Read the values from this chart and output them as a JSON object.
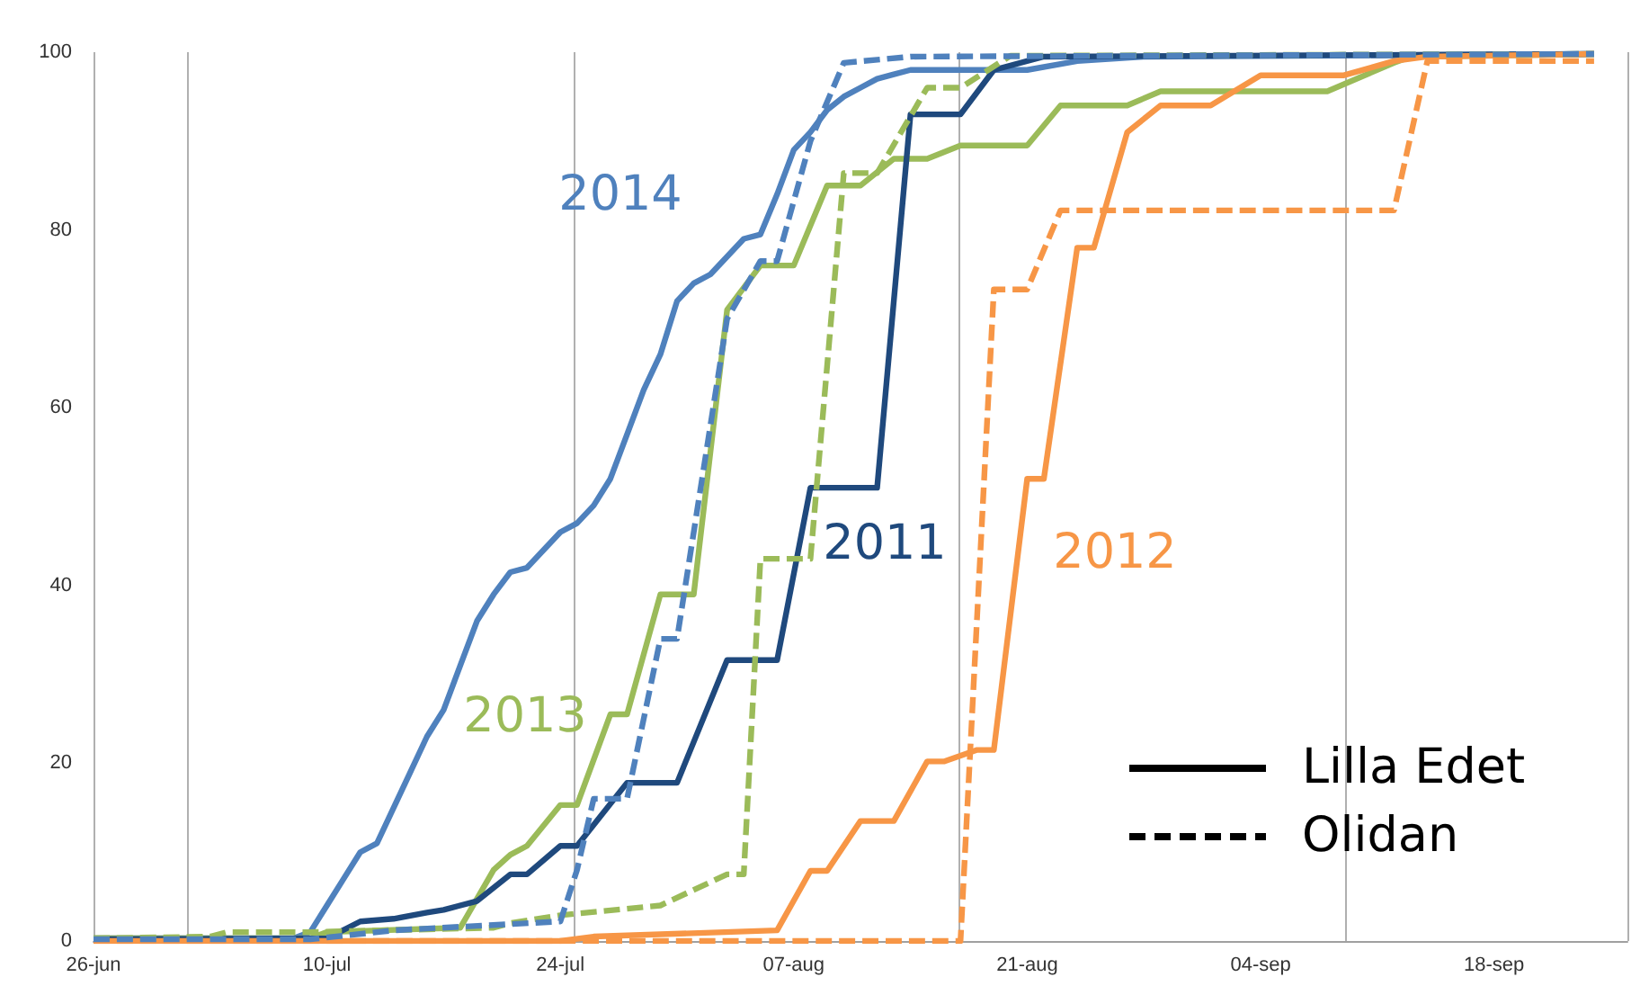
{
  "chart_data": {
    "type": "line",
    "xlim": [
      "--06-26",
      "--09-26"
    ],
    "xticks": [
      {
        "value": "--06-26",
        "label": "26-jun"
      },
      {
        "value": "--07-10",
        "label": "10-jul"
      },
      {
        "value": "--07-24",
        "label": "24-jul"
      },
      {
        "value": "--08-07",
        "label": "07-aug"
      },
      {
        "value": "--08-21",
        "label": "21-aug"
      },
      {
        "value": "--09-04",
        "label": "04-sep"
      },
      {
        "value": "--09-18",
        "label": "18-sep"
      }
    ],
    "ylim": [
      0,
      100
    ],
    "yticks": [
      0,
      20,
      40,
      60,
      80,
      100
    ],
    "grid": "x",
    "marker": "none",
    "series": [
      {
        "name": "2014",
        "line_style": "solid",
        "color": "#4f81bd",
        "x": [
          "--06-26",
          "--07-08",
          "--07-09",
          "--07-10",
          "--07-11",
          "--07-12",
          "--07-13",
          "--07-14",
          "--07-15",
          "--07-16",
          "--07-17",
          "--07-18",
          "--07-19",
          "--07-20",
          "--07-21",
          "--07-22",
          "--07-23",
          "--07-24",
          "--07-25",
          "--07-26",
          "--07-27",
          "--07-28",
          "--07-29",
          "--07-30",
          "--07-31",
          "--08-01",
          "--08-02",
          "--08-03",
          "--08-04",
          "--08-05",
          "--08-06",
          "--08-07",
          "--08-08",
          "--08-09",
          "--08-10",
          "--08-11",
          "--08-12",
          "--08-13",
          "--08-14",
          "--08-21",
          "--08-24",
          "--08-28",
          "--09-24"
        ],
        "values": [
          0.3,
          0.3,
          1,
          4,
          7,
          10,
          11,
          15,
          19,
          23,
          26,
          31,
          36,
          39,
          41.5,
          42,
          44,
          46,
          47,
          49,
          52,
          57,
          62,
          66,
          72,
          74,
          75,
          77,
          79,
          79.5,
          84,
          89,
          91,
          93.5,
          95,
          96,
          97,
          97.5,
          98,
          98,
          99,
          99.5,
          99.8
        ]
      },
      {
        "line_style": "dashed",
        "color": "#4f81bd",
        "x": [
          "--06-26",
          "--07-09",
          "--07-14",
          "--07-24",
          "--07-25",
          "--07-26",
          "--07-28",
          "--07-30",
          "--07-31",
          "--08-03",
          "--08-05",
          "--08-06",
          "--08-08",
          "--08-10",
          "--08-14",
          "--09-24"
        ],
        "values": [
          0.2,
          0.2,
          1.2,
          2.2,
          8,
          16,
          16,
          34,
          34,
          70,
          76.5,
          76.5,
          90,
          98.8,
          99.5,
          99.8
        ]
      },
      {
        "name": "2013",
        "line_style": "solid",
        "color": "#9bbb59",
        "x": [
          "--06-26",
          "--07-09",
          "--07-10",
          "--07-18",
          "--07-20",
          "--07-21",
          "--07-22",
          "--07-24",
          "--07-25",
          "--07-27",
          "--07-28",
          "--07-30",
          "--08-01",
          "--08-03",
          "--08-05",
          "--08-07",
          "--08-09",
          "--08-11",
          "--08-13",
          "--08-15",
          "--08-17",
          "--08-21",
          "--08-23",
          "--08-27",
          "--08-29",
          "--09-08",
          "--09-12",
          "--09-13",
          "--09-24"
        ],
        "values": [
          0.3,
          0.3,
          1,
          1.5,
          8,
          9.7,
          10.7,
          15.3,
          15.3,
          25.5,
          25.5,
          39,
          39,
          71,
          76,
          76,
          85,
          85,
          88,
          88,
          89.5,
          89.5,
          94,
          94,
          95.6,
          95.6,
          98.8,
          99.5,
          99.8
        ]
      },
      {
        "line_style": "dashed",
        "color": "#9bbb59",
        "x": [
          "--06-26",
          "--07-03",
          "--07-04",
          "--07-09",
          "--07-20",
          "--07-21",
          "--07-24",
          "--07-30",
          "--08-03",
          "--08-04",
          "--08-05",
          "--08-08",
          "--08-10",
          "--08-12",
          "--08-15",
          "--08-17",
          "--08-20",
          "--09-24"
        ],
        "values": [
          0.3,
          0.5,
          1,
          1,
          1.5,
          2,
          2.9,
          4,
          7.5,
          7.5,
          43,
          43,
          86.4,
          86.4,
          96,
          96,
          99.6,
          99.8
        ]
      },
      {
        "name": "2011",
        "line_style": "solid",
        "color": "#1f497d",
        "x": [
          "--06-26",
          "--07-10",
          "--07-12",
          "--07-14",
          "--07-16",
          "--07-17",
          "--07-19",
          "--07-21",
          "--07-22",
          "--07-24",
          "--07-25",
          "--07-28",
          "--07-31",
          "--08-03",
          "--08-06",
          "--08-08",
          "--08-12",
          "--08-14",
          "--08-17",
          "--08-19",
          "--08-22",
          "--09-24"
        ],
        "values": [
          0.2,
          0.3,
          2.2,
          2.5,
          3.2,
          3.5,
          4.5,
          7.5,
          7.5,
          10.7,
          10.7,
          17.8,
          17.8,
          31.6,
          31.6,
          51,
          51,
          93,
          93,
          98,
          99.5,
          99.8
        ]
      },
      {
        "name": "2012",
        "line_style": "solid",
        "color": "#f79646",
        "x": [
          "--06-26",
          "--07-24",
          "--07-26",
          "--08-06",
          "--08-08",
          "--08-09",
          "--08-11",
          "--08-13",
          "--08-15",
          "--08-16",
          "--08-18",
          "--08-19",
          "--08-21",
          "--08-22",
          "--08-24",
          "--08-25",
          "--08-27",
          "--08-29",
          "--09-01",
          "--09-04",
          "--09-09",
          "--09-12",
          "--09-14",
          "--09-24"
        ],
        "values": [
          0,
          0,
          0.5,
          1.2,
          7.9,
          7.9,
          13.5,
          13.5,
          20.2,
          20.2,
          21.5,
          21.5,
          52,
          52,
          78,
          78,
          91,
          94,
          94,
          97.4,
          97.4,
          99,
          99.5,
          99.8
        ]
      },
      {
        "line_style": "dashed",
        "color": "#f79646",
        "x": [
          "--06-26",
          "--08-17",
          "--08-19",
          "--08-21",
          "--08-23",
          "--09-12",
          "--09-14",
          "--09-24"
        ],
        "values": [
          0,
          0,
          73.3,
          73.3,
          82.2,
          82.2,
          99,
          99
        ]
      }
    ],
    "annotations": [
      "Lilla Edet",
      "Olidan"
    ]
  }
}
